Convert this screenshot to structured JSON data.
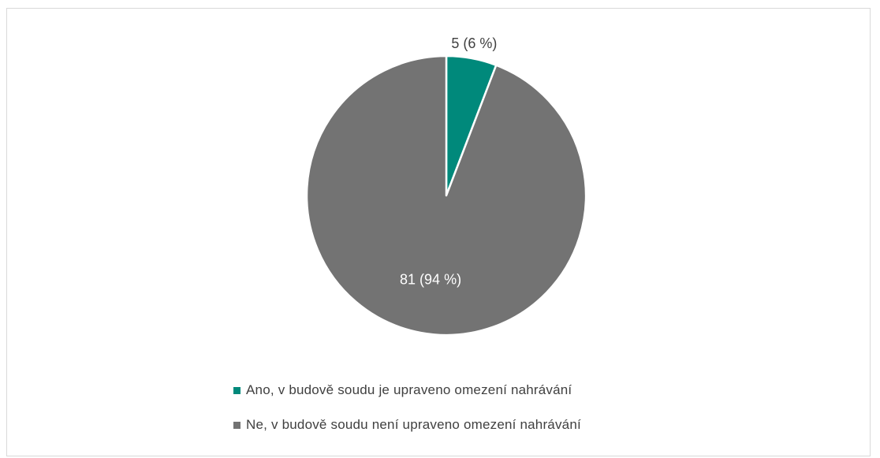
{
  "chart_data": {
    "type": "pie",
    "title": "",
    "slices": [
      {
        "name": "Ano, v budově soudu je upraveno omezení nahrávání",
        "value": 5,
        "label": "5 (6 %)",
        "color": "#00897b",
        "label_color": "#404040"
      },
      {
        "name": "Ne, v budově soudu není upraveno omezení nahrávání",
        "value": 81,
        "label": "81 (94 %)",
        "color": "#737373",
        "label_color": "#ffffff"
      }
    ],
    "start_angle": "12 o'clock",
    "direction": "clockwise",
    "legend_position": "bottom"
  }
}
